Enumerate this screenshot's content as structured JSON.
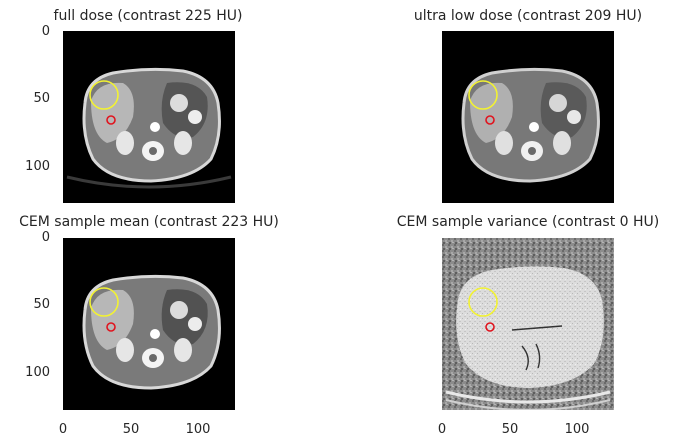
{
  "figure": {
    "panels": [
      {
        "id": "full-dose",
        "title": "full dose (contrast 225 HU)",
        "kind": "ct"
      },
      {
        "id": "ultra-low-dose",
        "title": "ultra low dose (contrast 209 HU)",
        "kind": "ct"
      },
      {
        "id": "cem-sample-mean",
        "title": "CEM sample mean (contrast 223 HU)",
        "kind": "ct"
      },
      {
        "id": "cem-sample-variance",
        "title": "CEM sample variance (contrast 0 HU)",
        "kind": "variance"
      }
    ],
    "y_ticks": [
      "0",
      "50",
      "100"
    ],
    "x_ticks": [
      "0",
      "50",
      "100"
    ],
    "colors": {
      "background": "#000000",
      "roi_large": "#f2f232",
      "roi_small": "#e0141e"
    }
  }
}
